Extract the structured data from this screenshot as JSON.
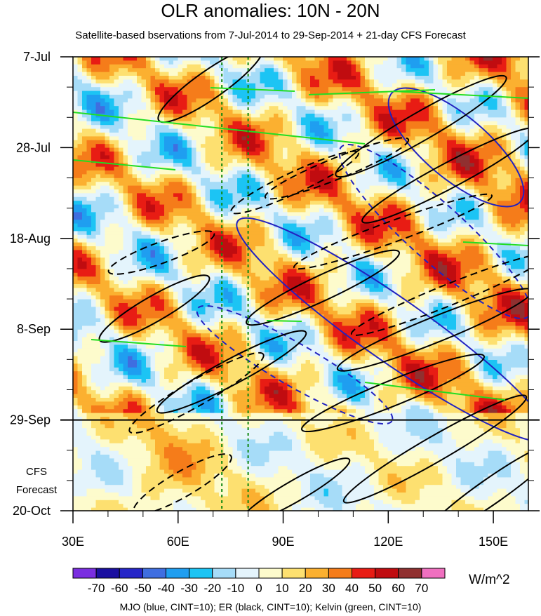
{
  "chart_data": {
    "type": "heatmap",
    "title": "OLR anomalies: 10N - 20N",
    "subtitle": "Satellite-based bservations from 7-Jul-2014 to 29-Sep-2014 + 21-day CFS Forecast",
    "x_ticks": [
      {
        "value": 30,
        "label": "30E"
      },
      {
        "value": 60,
        "label": "60E"
      },
      {
        "value": 90,
        "label": "90E"
      },
      {
        "value": 120,
        "label": "120E"
      },
      {
        "value": 150,
        "label": "150E"
      }
    ],
    "xlim": [
      30,
      160
    ],
    "y_ticks": [
      {
        "day": 0,
        "label": "7-Jul"
      },
      {
        "day": 21,
        "label": "28-Jul"
      },
      {
        "day": 42,
        "label": "18-Aug"
      },
      {
        "day": 63,
        "label": "8-Sep"
      },
      {
        "day": 84,
        "label": "29-Sep"
      },
      {
        "day": 105,
        "label": "20-Oct"
      }
    ],
    "ylim_days": [
      0,
      105
    ],
    "observation_end_day": 84,
    "forecast_label_1": "CFS",
    "forecast_label_2": "Forecast",
    "reference_lines_lon": [
      72.5,
      80
    ],
    "colorbar": {
      "labels": [
        "-70",
        "-60",
        "-50",
        "-40",
        "-30",
        "-20",
        "-10",
        "0",
        "10",
        "20",
        "30",
        "40",
        "50",
        "60",
        "70"
      ],
      "colors": [
        "#7a2ee0",
        "#1a0fa0",
        "#2626c8",
        "#3f6ee0",
        "#1f9ef0",
        "#1cc4f4",
        "#a6dcf8",
        "#e4f4fc",
        "#fdfbcc",
        "#fde070",
        "#fbb030",
        "#f57c1a",
        "#e81c14",
        "#c00c10",
        "#903030",
        "#f070c0"
      ],
      "units": "W/m^2"
    },
    "legend_note": "MJO (blue, CINT=10); ER (black, CINT=10); Kelvin (green, CINT=10)"
  }
}
